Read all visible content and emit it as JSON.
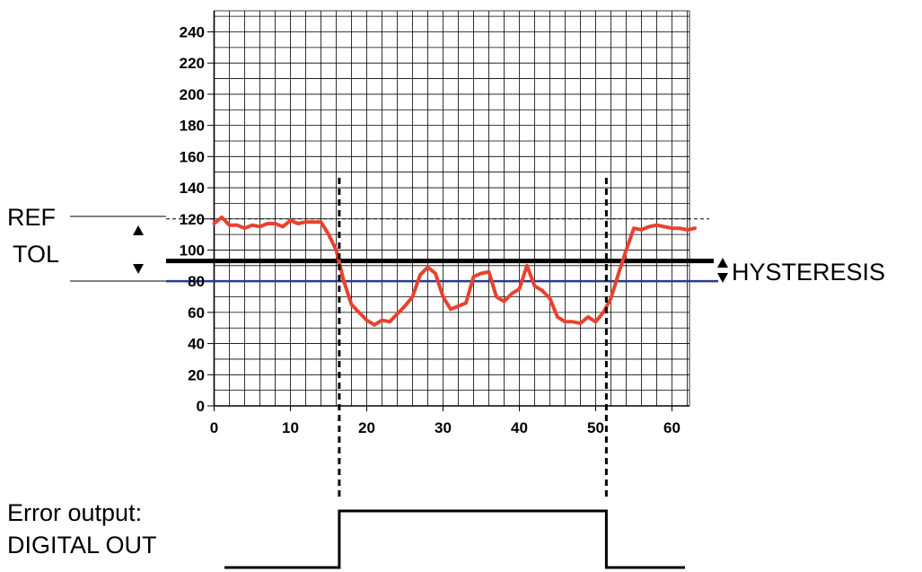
{
  "labels": {
    "ref": "REF",
    "tol": "TOL",
    "hysteresis": "HYSTERESIS",
    "error_output": "Error output:",
    "digital_out": "DIGITAL OUT"
  },
  "colors": {
    "signal": "#e8422e",
    "low_threshold": "#2a3a8c",
    "high_threshold": "#000000",
    "grid": "#000000"
  },
  "chart_data": {
    "type": "line",
    "title": "",
    "xlabel": "",
    "ylabel": "",
    "xlim": [
      0,
      64
    ],
    "ylim": [
      0,
      250
    ],
    "grid": true,
    "x_ticks": [
      0,
      10,
      20,
      30,
      40,
      50,
      60
    ],
    "y_ticks": [
      0,
      20,
      40,
      60,
      80,
      100,
      120,
      140,
      160,
      180,
      200,
      220,
      240
    ],
    "series": [
      {
        "x": [
          0,
          1,
          2,
          3,
          4,
          5,
          6,
          7,
          8,
          9,
          10,
          11,
          12,
          13,
          14,
          15,
          16,
          17,
          18,
          19,
          20,
          21,
          22,
          23,
          24,
          25,
          26,
          27,
          28,
          29,
          30,
          31,
          32,
          33,
          34,
          35,
          36,
          37,
          38,
          39,
          40,
          41,
          42,
          43,
          44,
          45,
          46,
          47,
          48,
          49,
          50,
          51,
          52,
          53,
          54,
          55,
          56,
          57,
          58,
          59,
          60,
          61,
          62,
          63
        ],
        "y": [
          117,
          121,
          116,
          116,
          114,
          116,
          115,
          117,
          117,
          115,
          119,
          117,
          118,
          118,
          118,
          110,
          100,
          80,
          65,
          60,
          55,
          52,
          55,
          54,
          59,
          64,
          70,
          84,
          89,
          85,
          70,
          62,
          64,
          66,
          83,
          85,
          86,
          70,
          67,
          72,
          75,
          90,
          77,
          74,
          69,
          57,
          54,
          54,
          53,
          57,
          54,
          60,
          69,
          85,
          100,
          114,
          113,
          115,
          116,
          115,
          114,
          114,
          113,
          114
        ]
      }
    ],
    "reference_lines": [
      {
        "label": "REF",
        "y": 120,
        "style": "dashed"
      },
      {
        "y": 93,
        "style": "solid-thick"
      },
      {
        "y": 80,
        "style": "solid"
      }
    ],
    "event_markers_x": [
      16.4,
      51.4
    ],
    "digital_output": {
      "label": "DIGITAL OUT",
      "high_from": 16.4,
      "high_to": 51.4
    }
  }
}
